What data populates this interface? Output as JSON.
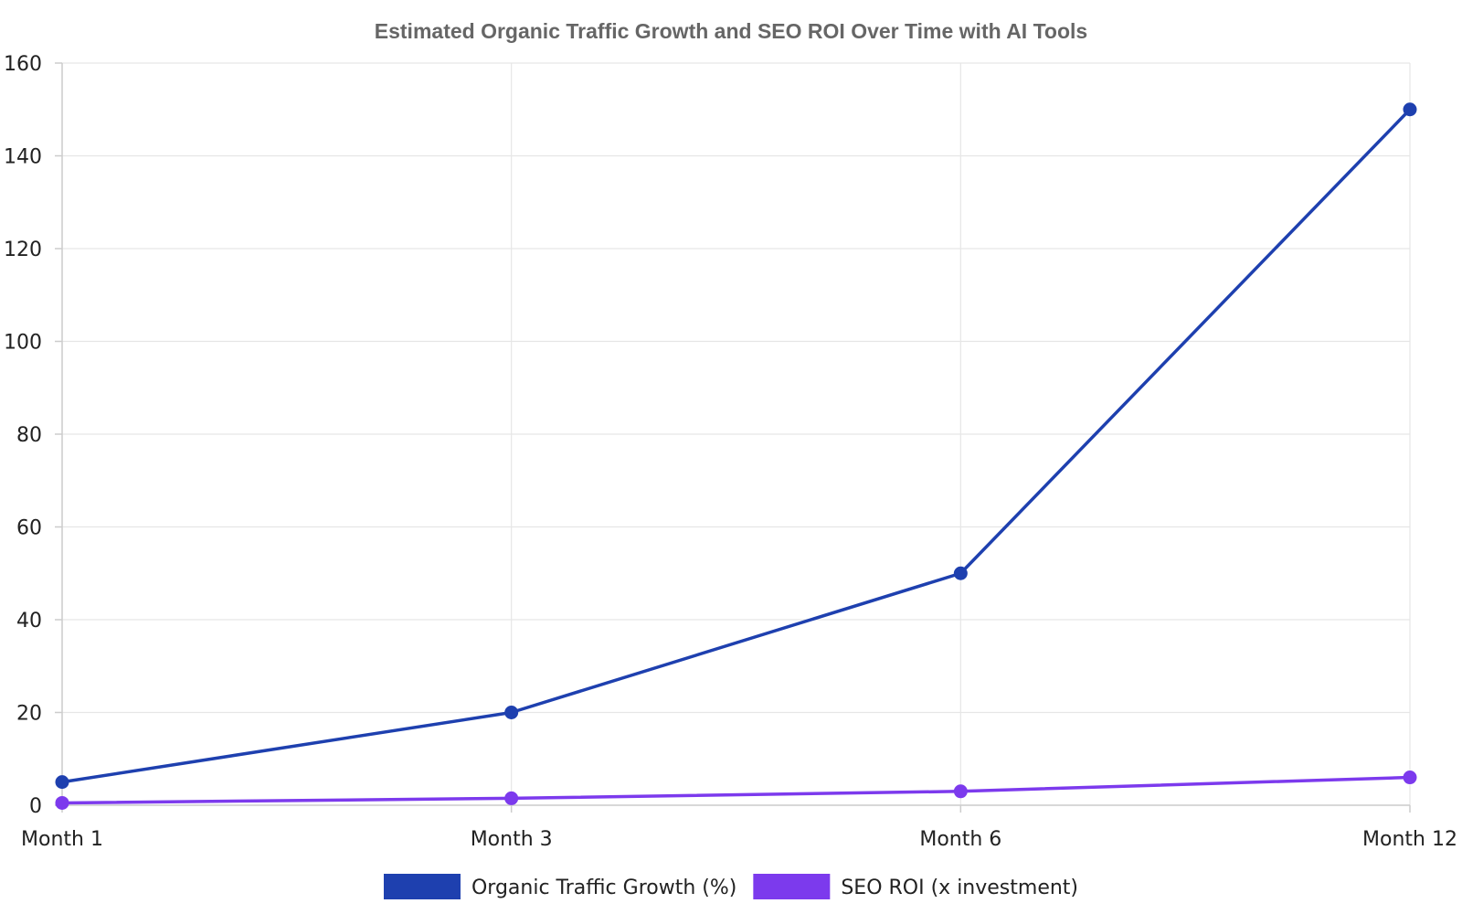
{
  "chart_data": {
    "type": "line",
    "title": "Estimated Organic Traffic Growth and SEO ROI Over Time with AI Tools",
    "categories": [
      "Month 1",
      "Month 3",
      "Month 6",
      "Month 12"
    ],
    "ylim": [
      0,
      160
    ],
    "yticks": [
      "0",
      "20",
      "40",
      "60",
      "80",
      "100",
      "120",
      "140",
      "160"
    ],
    "grid": true,
    "legend_position": "bottom",
    "series": [
      {
        "name": "Organic Traffic Growth (%)",
        "color": "#1e40af",
        "values": [
          5,
          20,
          50,
          150
        ]
      },
      {
        "name": "SEO ROI (x investment)",
        "color": "#7c3aed",
        "values": [
          0.5,
          1.5,
          3,
          6
        ]
      }
    ]
  }
}
